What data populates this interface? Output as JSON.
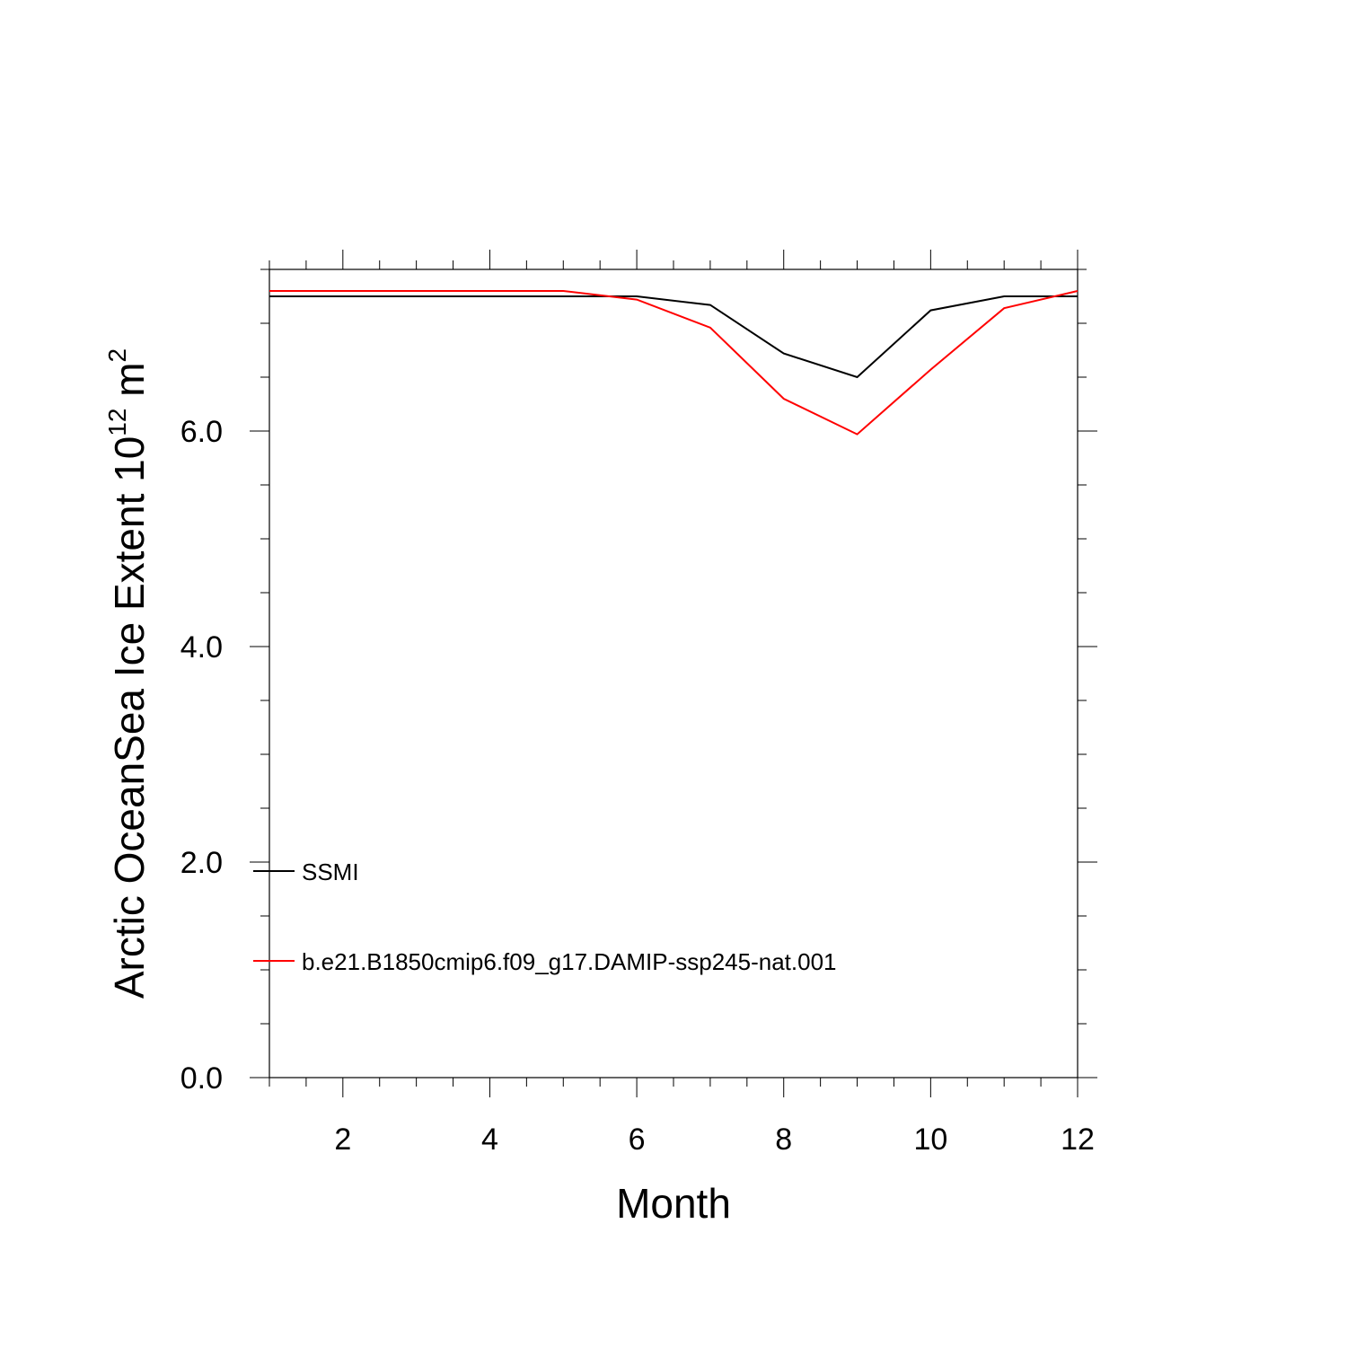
{
  "chart_data": {
    "type": "line",
    "title": "",
    "xlabel": "Month",
    "ylabel": {
      "text": "Arctic OceanSea Ice Extent 10",
      "exponent": "12",
      "unit": "m",
      "unit_exponent": "2"
    },
    "xlim": [
      1,
      12
    ],
    "ylim": [
      0,
      7.5
    ],
    "x": [
      1,
      2,
      3,
      4,
      5,
      6,
      7,
      8,
      9,
      10,
      11,
      12
    ],
    "x_ticks": [
      2,
      4,
      6,
      8,
      10,
      12
    ],
    "x_tick_labels": [
      "2",
      "4",
      "6",
      "8",
      "10",
      "12"
    ],
    "y_ticks": [
      0,
      2,
      4,
      6
    ],
    "y_tick_labels": [
      "0.0",
      "2.0",
      "4.0",
      "6.0"
    ],
    "grid": false,
    "legend_position": "lower-left",
    "series": [
      {
        "name": "SSMI",
        "color": "#000000",
        "values": [
          7.25,
          7.25,
          7.25,
          7.25,
          7.25,
          7.25,
          7.17,
          6.72,
          6.5,
          7.12,
          7.25,
          7.25
        ]
      },
      {
        "name": "b.e21.B1850cmip6.f09_g17.DAMIP-ssp245-nat.001",
        "color": "#ff0000",
        "values": [
          7.3,
          7.3,
          7.3,
          7.3,
          7.3,
          7.22,
          6.96,
          6.3,
          5.97,
          6.57,
          7.14,
          7.3
        ]
      }
    ]
  }
}
